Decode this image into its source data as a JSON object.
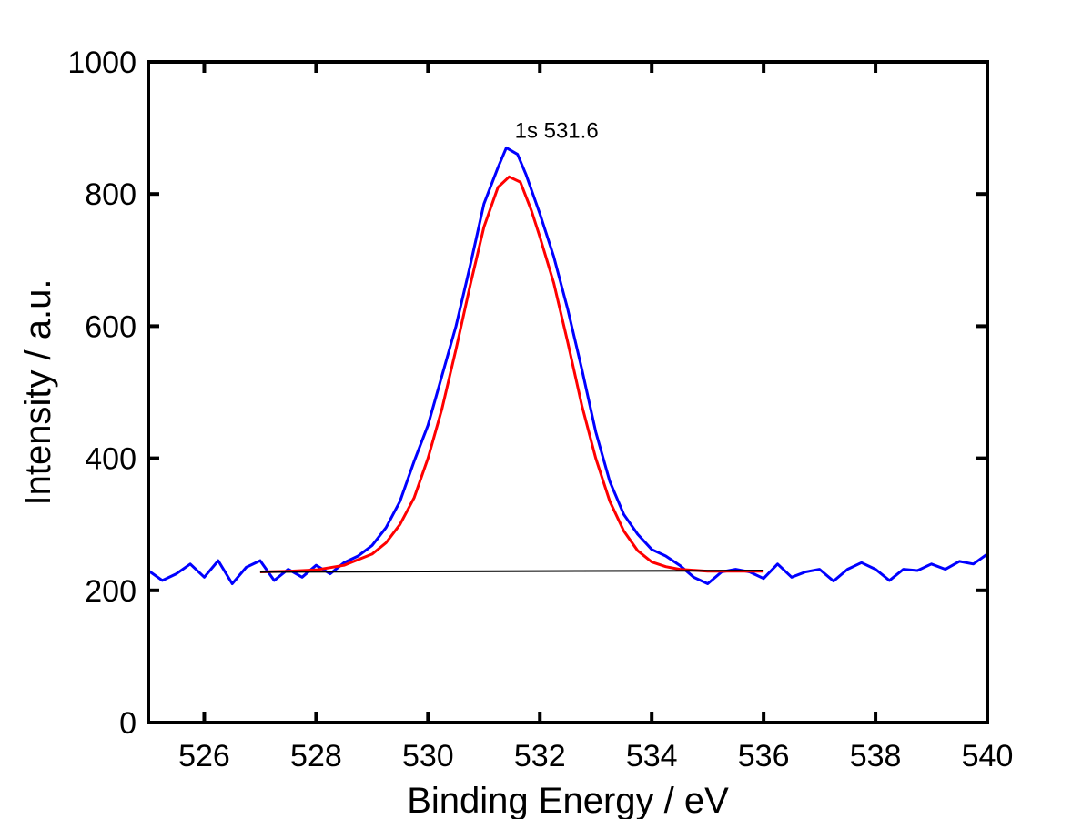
{
  "chart_data": {
    "type": "line",
    "title": "",
    "xlabel": "Binding Energy / eV",
    "ylabel": "Intensity / a.u.",
    "xlim": [
      525,
      540
    ],
    "ylim": [
      0,
      1000
    ],
    "x_ticks": [
      526,
      528,
      530,
      532,
      534,
      536,
      538,
      540
    ],
    "y_ticks": [
      0,
      200,
      400,
      600,
      800,
      1000
    ],
    "grid": false,
    "legend": "none",
    "annotations": [
      {
        "text": "1s 531.6",
        "x": 531.55,
        "y": 885
      }
    ],
    "series": [
      {
        "style": "raw",
        "color": "#0000ff",
        "x": [
          525.0,
          525.25,
          525.5,
          525.75,
          526.0,
          526.25,
          526.5,
          526.75,
          527.0,
          527.25,
          527.5,
          527.75,
          528.0,
          528.25,
          528.5,
          528.75,
          529.0,
          529.25,
          529.5,
          529.75,
          530.0,
          530.25,
          530.5,
          530.75,
          531.0,
          531.25,
          531.4,
          531.6,
          531.75,
          532.0,
          532.25,
          532.5,
          532.75,
          533.0,
          533.25,
          533.5,
          533.75,
          534.0,
          534.25,
          534.5,
          534.75,
          535.0,
          535.25,
          535.5,
          535.75,
          536.0,
          536.25,
          536.5,
          536.75,
          537.0,
          537.25,
          537.5,
          537.75,
          538.0,
          538.25,
          538.5,
          538.75,
          539.0,
          539.25,
          539.5,
          539.75,
          540.0
        ],
        "y": [
          230,
          215,
          225,
          240,
          220,
          245,
          210,
          235,
          245,
          215,
          232,
          220,
          238,
          225,
          242,
          252,
          268,
          295,
          335,
          395,
          450,
          525,
          600,
          690,
          785,
          840,
          870,
          860,
          830,
          770,
          705,
          625,
          535,
          440,
          365,
          315,
          285,
          262,
          252,
          238,
          220,
          210,
          228,
          232,
          228,
          218,
          240,
          220,
          228,
          232,
          214,
          232,
          242,
          232,
          215,
          232,
          230,
          240,
          232,
          244,
          240,
          255
        ]
      },
      {
        "style": "fit",
        "color": "#ff0000",
        "x": [
          527.0,
          527.5,
          528.0,
          528.5,
          529.0,
          529.25,
          529.5,
          529.75,
          530.0,
          530.25,
          530.5,
          530.75,
          531.0,
          531.25,
          531.45,
          531.65,
          531.85,
          532.0,
          532.25,
          532.5,
          532.75,
          533.0,
          533.25,
          533.5,
          533.75,
          534.0,
          534.25,
          534.5,
          535.0,
          535.5,
          536.0
        ],
        "y": [
          228,
          229,
          231,
          238,
          255,
          272,
          300,
          340,
          400,
          475,
          565,
          660,
          750,
          810,
          826,
          818,
          775,
          735,
          665,
          575,
          480,
          400,
          335,
          290,
          260,
          243,
          236,
          232,
          229,
          229,
          229
        ]
      },
      {
        "style": "baseline",
        "color": "#000000",
        "x": [
          527.0,
          536.0
        ],
        "y": [
          228,
          230
        ]
      }
    ]
  }
}
